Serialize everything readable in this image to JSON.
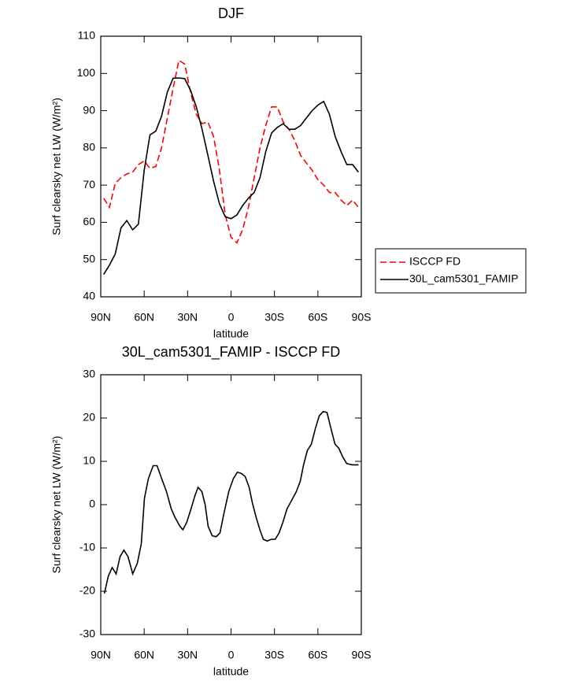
{
  "chart_data": [
    {
      "type": "line",
      "title": "DJF",
      "x_label": "latitude",
      "y_label": "Surf clearsky net LW (W/m²)",
      "x": [
        88,
        84,
        80,
        76,
        72,
        68,
        64,
        60,
        56,
        52,
        48,
        44,
        40,
        36,
        32,
        28,
        24,
        20,
        16,
        12,
        8,
        4,
        0,
        -4,
        -8,
        -12,
        -16,
        -20,
        -24,
        -28,
        -32,
        -36,
        -40,
        -44,
        -48,
        -52,
        -56,
        -60,
        -64,
        -68,
        -72,
        -76,
        -80,
        -84,
        -88
      ],
      "series": [
        {
          "name": "ISCCP FD",
          "color": "#ff0000",
          "dash": "dashed",
          "values": [
            66.5,
            64,
            70.5,
            72,
            73,
            73.5,
            75.5,
            76.5,
            74.5,
            75,
            80,
            88,
            96,
            103.5,
            102.5,
            95,
            89,
            86.5,
            87,
            83,
            74,
            62,
            56,
            54.5,
            58,
            64,
            72,
            80,
            86,
            91,
            91,
            87,
            85,
            82,
            78,
            76,
            74,
            71.5,
            70,
            68,
            68,
            66,
            64.5,
            66,
            64
          ]
        },
        {
          "name": "30L_cam5301_FAMIP",
          "color": "#000000",
          "dash": "solid",
          "values": [
            46,
            48.5,
            51.5,
            58.5,
            60.5,
            58,
            59.5,
            74,
            83.5,
            84.5,
            88.5,
            95,
            98.7,
            98.8,
            98.6,
            95.5,
            91,
            85,
            78,
            71,
            65,
            61.5,
            61,
            62,
            64.5,
            66.5,
            68,
            72,
            79,
            84,
            85.5,
            86.5,
            85,
            85,
            86,
            88,
            90,
            91.5,
            92.5,
            89,
            83,
            79,
            75.5,
            75.5,
            73.5
          ]
        }
      ],
      "xlim": [
        90,
        -90
      ],
      "xticks": [
        {
          "value": 90,
          "label": "90N"
        },
        {
          "value": 60,
          "label": "60N"
        },
        {
          "value": 30,
          "label": "30N"
        },
        0,
        {
          "value": -30,
          "label": "30S"
        },
        {
          "value": -60,
          "label": "60S"
        },
        {
          "value": -90,
          "label": "90S"
        }
      ],
      "ylim": [
        40,
        110
      ],
      "yticks": [
        40,
        50,
        60,
        70,
        80,
        90,
        100,
        110
      ],
      "legend": "right"
    },
    {
      "type": "line",
      "title": "30L_cam5301_FAMIP - ISCCP FD",
      "x_label": "latitude",
      "y_label": "Surf clearsky net LW (W/m²)",
      "x": [
        87.5,
        84.8,
        82.1,
        79.4,
        76.7,
        74,
        71.2,
        67.9,
        64.7,
        62,
        59.8,
        57.1,
        53.8,
        51.1,
        47.9,
        44.6,
        41.3,
        38.6,
        35.3,
        33.2,
        30.5,
        27.7,
        25,
        22.8,
        20.1,
        17.9,
        15.8,
        13,
        10.3,
        7.6,
        4.9,
        1.6,
        -1.6,
        -4.4,
        -7.1,
        -9.8,
        -12.5,
        -14.7,
        -17.4,
        -20.1,
        -22.3,
        -25,
        -27.7,
        -30.5,
        -33.2,
        -35.9,
        -38.6,
        -41.9,
        -45.1,
        -47.9,
        -50,
        -52.7,
        -55.5,
        -58.2,
        -60.9,
        -63.6,
        -66.3,
        -69.1,
        -71.8,
        -74.5,
        -77.2,
        -79.9,
        -83.7,
        -88.1
      ],
      "series": [
        {
          "color": "#000000",
          "dash": "solid",
          "values": [
            -20.5,
            -16.5,
            -14.5,
            -16,
            -12,
            -10.5,
            -12,
            -16,
            -13.5,
            -9,
            1.5,
            6,
            9,
            9,
            6,
            3,
            -1,
            -3,
            -5,
            -5.8,
            -4,
            -1,
            2,
            4,
            3,
            0,
            -5,
            -7.2,
            -7.4,
            -6.5,
            -2,
            3,
            6,
            7.5,
            7.2,
            6.5,
            4,
            0.5,
            -3,
            -6,
            -8,
            -8.4,
            -8,
            -8,
            -6.5,
            -4,
            -1,
            1,
            3,
            5.5,
            9,
            12.5,
            14,
            17.5,
            20.5,
            21.5,
            21.3,
            17.5,
            14,
            13,
            11,
            9.5,
            9.2,
            9.2
          ]
        }
      ],
      "xlim": [
        90,
        -90
      ],
      "xticks": [
        {
          "value": 90,
          "label": "90N"
        },
        {
          "value": 60,
          "label": "60N"
        },
        {
          "value": 30,
          "label": "30N"
        },
        0,
        {
          "value": -30,
          "label": "30S"
        },
        {
          "value": -60,
          "label": "60S"
        },
        {
          "value": -90,
          "label": "90S"
        }
      ],
      "ylim": [
        -30,
        30
      ],
      "yticks": [
        -30,
        -20,
        -10,
        0,
        10,
        20,
        30
      ]
    }
  ]
}
